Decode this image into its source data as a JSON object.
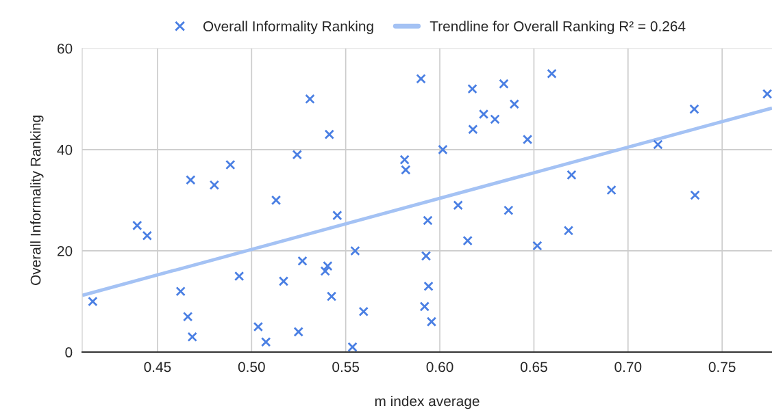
{
  "chart_data": {
    "type": "scatter",
    "xlabel": "m index average",
    "ylabel": "Overall Informality Ranking",
    "series": [
      {
        "name": "Overall Informality Ranking",
        "color": "#4a7fe3",
        "marker": "cross",
        "x": [
          0.4156,
          0.4392,
          0.4445,
          0.4623,
          0.4661,
          0.4685,
          0.4676,
          0.4802,
          0.4887,
          0.4934,
          0.513,
          0.5242,
          0.527,
          0.517,
          0.5035,
          0.5076,
          0.5249,
          0.531,
          0.5413,
          0.5455,
          0.5404,
          0.5391,
          0.5425,
          0.555,
          0.5595,
          0.5536,
          0.5813,
          0.5819,
          0.59,
          0.5936,
          0.5927,
          0.594,
          0.5919,
          0.5956,
          0.6016,
          0.6097,
          0.6148,
          0.6173,
          0.6176,
          0.6233,
          0.6293,
          0.634,
          0.6396,
          0.6365,
          0.6466,
          0.6518,
          0.6595,
          0.67,
          0.6684,
          0.6912,
          0.7159,
          0.7352,
          0.7356,
          0.774
        ],
        "values": [
          10,
          25,
          23,
          12,
          7,
          3,
          34,
          33,
          37,
          15,
          30,
          39,
          18,
          14,
          5,
          2,
          4,
          50,
          43,
          27,
          17,
          16,
          11,
          20,
          8,
          1,
          38,
          36,
          54,
          26,
          19,
          13,
          9,
          6,
          40,
          29,
          22,
          52,
          44,
          47,
          46,
          53,
          49,
          28,
          42,
          21,
          55,
          35,
          24,
          32,
          41,
          48,
          31,
          51
        ]
      },
      {
        "name": "Trendline for Overall Ranking R² = 0.264",
        "type": "line",
        "color": "#a4c2f4",
        "line_style": "solid",
        "x": [
          0.41,
          0.7765
        ],
        "values": [
          11.2,
          48.2
        ]
      }
    ],
    "xlim": [
      0.41,
      0.7765
    ],
    "ylim": [
      0,
      60
    ],
    "xticks": [
      {
        "value": 0.45,
        "label": "0.45"
      },
      {
        "value": 0.5,
        "label": "0.50"
      },
      {
        "value": 0.55,
        "label": "0.55"
      },
      {
        "value": 0.6,
        "label": "0.60"
      },
      {
        "value": 0.65,
        "label": "0.65"
      },
      {
        "value": 0.7,
        "label": "0.70"
      },
      {
        "value": 0.75,
        "label": "0.75"
      }
    ],
    "yticks": [
      0,
      20,
      40,
      60
    ],
    "grid": true,
    "legend": "top"
  }
}
